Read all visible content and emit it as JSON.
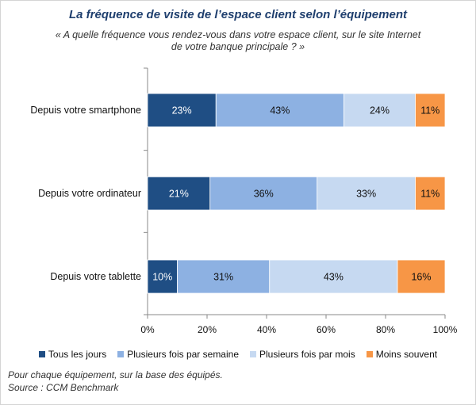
{
  "chart_data": {
    "type": "bar",
    "orientation": "horizontal",
    "stacked": true,
    "title": "La fréquence de visite de l’espace client selon l’équipement",
    "subtitle_line1": "« A quelle fréquence vous rendez-vous dans votre espace client, sur le site Internet",
    "subtitle_line2": "de votre banque principale ? »",
    "categories": [
      "Depuis votre smartphone",
      "Depuis votre ordinateur",
      "Depuis votre tablette"
    ],
    "series": [
      {
        "name": "Tous les jours",
        "color": "#1f4e84",
        "values": [
          23,
          21,
          10
        ],
        "labels": [
          "23%",
          "21%",
          "10%"
        ]
      },
      {
        "name": "Plusieurs fois par semaine",
        "color": "#8db1e2",
        "values": [
          43,
          36,
          31
        ],
        "labels": [
          "43%",
          "36%",
          "31%"
        ]
      },
      {
        "name": "Plusieurs fois par mois",
        "color": "#c6d9f1",
        "values": [
          24,
          33,
          43
        ],
        "labels": [
          "24%",
          "33%",
          "43%"
        ]
      },
      {
        "name": "Moins souvent",
        "color": "#f79646",
        "values": [
          11,
          11,
          16
        ],
        "labels": [
          "11%",
          "11%",
          "16%"
        ]
      }
    ],
    "xlim": [
      0,
      100
    ],
    "xticks": [
      0,
      20,
      40,
      60,
      80,
      100
    ],
    "xtick_labels": [
      "0%",
      "20%",
      "40%",
      "60%",
      "80%",
      "100%"
    ],
    "grid": false,
    "legend_position": "bottom"
  },
  "footnote": {
    "line1": "Pour chaque équipement, sur la base des équipés.",
    "line2": "Source : CCM Benchmark"
  }
}
